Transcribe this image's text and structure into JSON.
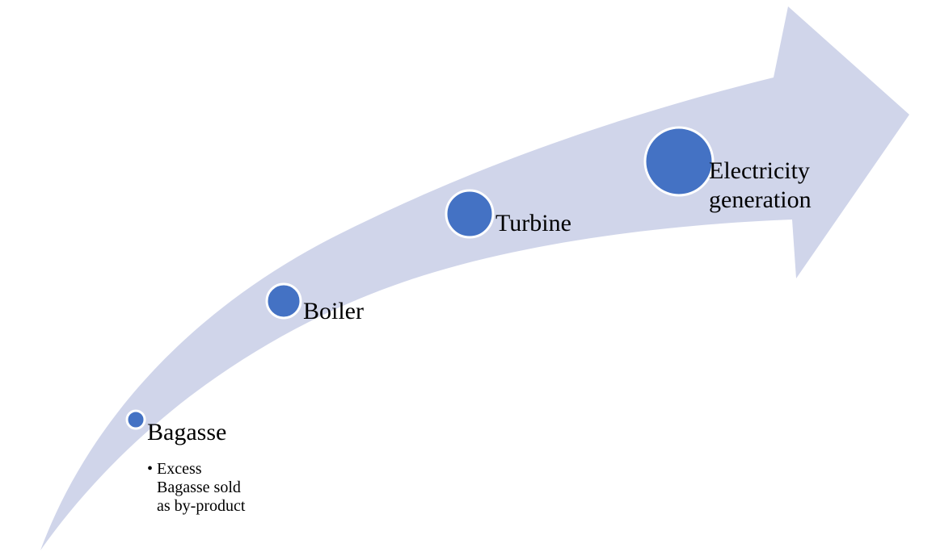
{
  "nodes": [
    {
      "label": "Bagasse",
      "details": [
        "Excess Bagasse sold as by-product"
      ]
    },
    {
      "label": "Boiler"
    },
    {
      "label": "Turbine"
    },
    {
      "label": "Electricity generation"
    }
  ]
}
